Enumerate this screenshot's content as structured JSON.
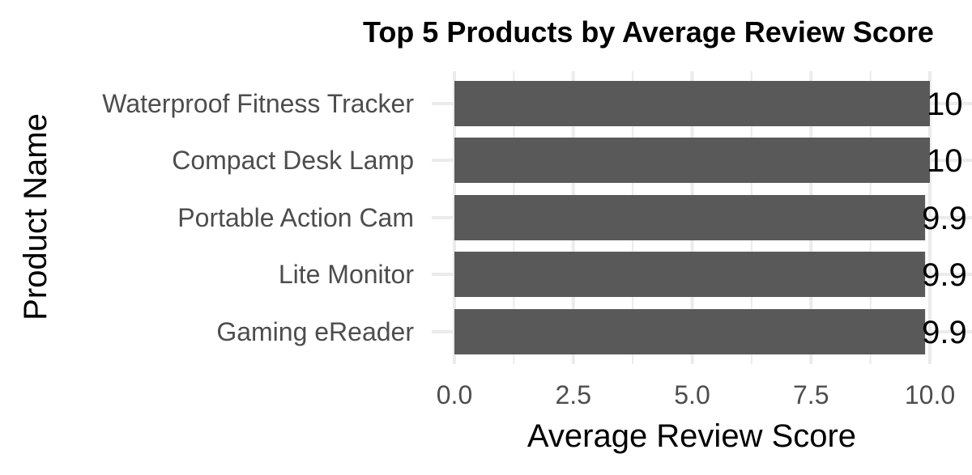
{
  "chart_data": {
    "type": "bar",
    "orientation": "horizontal",
    "title": "Top 5 Products by Average Review Score",
    "xlabel": "Average Review Score",
    "ylabel": "Product Name",
    "categories": [
      "Waterproof Fitness Tracker",
      "Compact Desk Lamp",
      "Portable Action Cam",
      "Lite Monitor",
      "Gaming eReader"
    ],
    "values": [
      10.0,
      10.0,
      9.9,
      9.9,
      9.9
    ],
    "data_labels": [
      "10",
      "10",
      "9.9",
      "9.9",
      "9.9"
    ],
    "xlim": [
      0,
      10.0
    ],
    "x_ticks": [
      "0.0",
      "2.5",
      "5.0",
      "7.5",
      "10.0"
    ],
    "x_tick_values": [
      0,
      2.5,
      5,
      7.5,
      10
    ],
    "grid": true,
    "bar_color": "#595959",
    "grid_color": "#ebebeb"
  }
}
